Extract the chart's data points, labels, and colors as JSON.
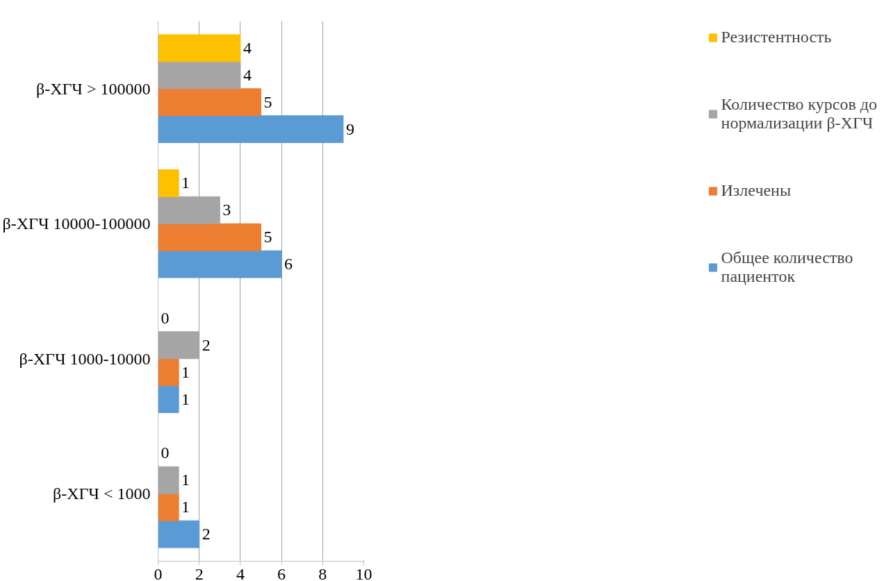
{
  "chart_data": {
    "type": "bar",
    "orientation": "horizontal",
    "categories": [
      "β-ХГЧ > 100000",
      "β-ХГЧ 10000-100000",
      "β-ХГЧ 1000-10000",
      "β-ХГЧ < 1000"
    ],
    "series": [
      {
        "name": "Общее количество пациенток",
        "color": "#5b9bd5",
        "values": [
          9,
          6,
          1,
          2
        ]
      },
      {
        "name": "Излечены",
        "color": "#ed7d31",
        "values": [
          5,
          5,
          1,
          1
        ]
      },
      {
        "name": "Количество курсов до нормализации β-ХГЧ",
        "color": "#a5a5a5",
        "values": [
          4,
          3,
          2,
          1
        ]
      },
      {
        "name": "Резистентность",
        "color": "#ffc000",
        "values": [
          4,
          1,
          0,
          0
        ]
      }
    ],
    "xlim": [
      0,
      10
    ],
    "xticks": [
      0,
      2,
      4,
      6,
      8,
      10
    ],
    "grid": "x",
    "legend": "right",
    "data_labels": true
  }
}
